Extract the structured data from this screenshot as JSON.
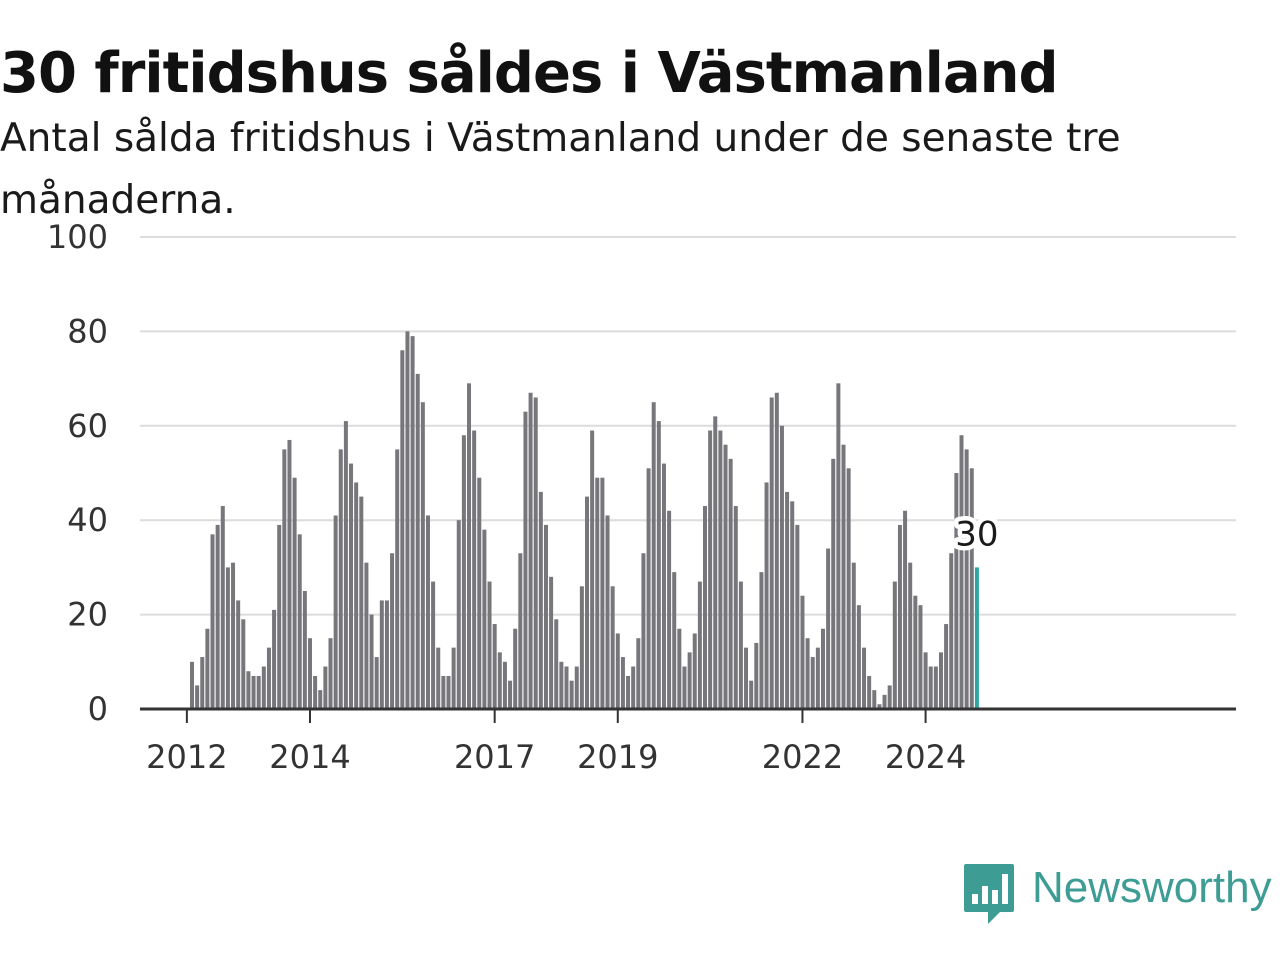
{
  "title": "30 fritidshus såldes i Västmanland",
  "subtitle": "Antal sålda fritidshus i Västmanland under de senaste tre månaderna.",
  "brand": {
    "name": "Newsworthy",
    "color": "#3d9d94",
    "icon": "newsworthy-logo-icon"
  },
  "chart_data": {
    "type": "bar",
    "title": "30 fritidshus såldes i Västmanland",
    "subtitle": "Antal sålda fritidshus i Västmanland under de senaste tre månaderna.",
    "xlabel": "",
    "ylabel": "",
    "ylim": [
      0,
      100
    ],
    "yticks": [
      0,
      20,
      40,
      60,
      80,
      100
    ],
    "xticks": [
      "2012",
      "2014",
      "2017",
      "2019",
      "2022",
      "2024"
    ],
    "grid": true,
    "bar_color": "#77767b",
    "highlight_color": "#2ea5a0",
    "highlight_label": "30",
    "series": [
      {
        "values": [
          10,
          5,
          11,
          17,
          37,
          39,
          43,
          30,
          31,
          23,
          19,
          8,
          7,
          7,
          9,
          13,
          21,
          39,
          55,
          57,
          49,
          37,
          25,
          15,
          7,
          4,
          9,
          15,
          41,
          55,
          61,
          52,
          48,
          45,
          31,
          20,
          11,
          23,
          23,
          33,
          55,
          76,
          80,
          79,
          71,
          65,
          41,
          27,
          13,
          7,
          7,
          13,
          40,
          58,
          69,
          59,
          49,
          38,
          27,
          18,
          12,
          10,
          6,
          17,
          33,
          63,
          67,
          66,
          46,
          39,
          28,
          19,
          10,
          9,
          6,
          9,
          26,
          45,
          59,
          49,
          49,
          41,
          26,
          16,
          11,
          7,
          9,
          15,
          33,
          51,
          65,
          61,
          52,
          42,
          29,
          17,
          9,
          12,
          16,
          27,
          43,
          59,
          62,
          59,
          56,
          53,
          43,
          27,
          13,
          6,
          14,
          29,
          48,
          66,
          67,
          60,
          46,
          44,
          39,
          24,
          15,
          11,
          13,
          17,
          34,
          53,
          69,
          56,
          51,
          31,
          22,
          13,
          7,
          4,
          1,
          3,
          5,
          27,
          39,
          42,
          31,
          24,
          22,
          12,
          9,
          9,
          12,
          18,
          33,
          50,
          58,
          55,
          51,
          30
        ]
      }
    ]
  }
}
